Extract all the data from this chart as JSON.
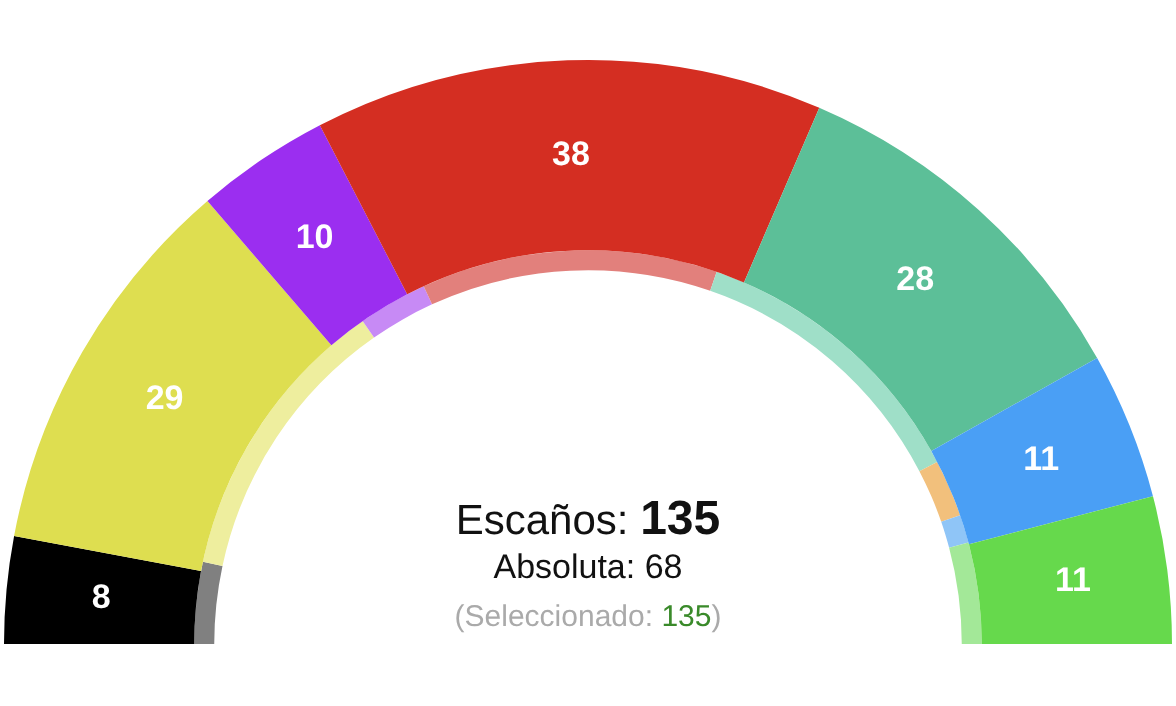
{
  "chart_data": {
    "type": "donut",
    "categories": [
      null,
      null,
      null,
      null,
      null,
      null,
      null,
      null
    ],
    "legend": false,
    "series": [
      {
        "values": [
          8,
          29,
          10,
          38,
          28,
          null,
          11,
          11
        ],
        "value_labels": [
          "8",
          "29",
          "10",
          "38",
          "28",
          null,
          "11",
          "11"
        ],
        "colors": [
          "#000000",
          "#dede50",
          "#9b2ef0",
          "#d42e22",
          "#5cbf98",
          "#f2c07c",
          "#4a9ff5",
          "#66d94c"
        ]
      },
      {
        "values": [
          6.7,
          23.9,
          5.7,
          24.3,
          24.1,
          4.7,
          2.3,
          8.3
        ],
        "colors": [
          "#808080",
          "#eeee9e",
          "#c78af5",
          "#e2807c",
          "#9fdfc8",
          "#f2c07c",
          "#8fc5f7",
          "#a3e898"
        ]
      }
    ],
    "annotations": [
      "Escaños: 135",
      "Absoluta: 68",
      "(Seleccionado: 135)"
    ]
  }
}
